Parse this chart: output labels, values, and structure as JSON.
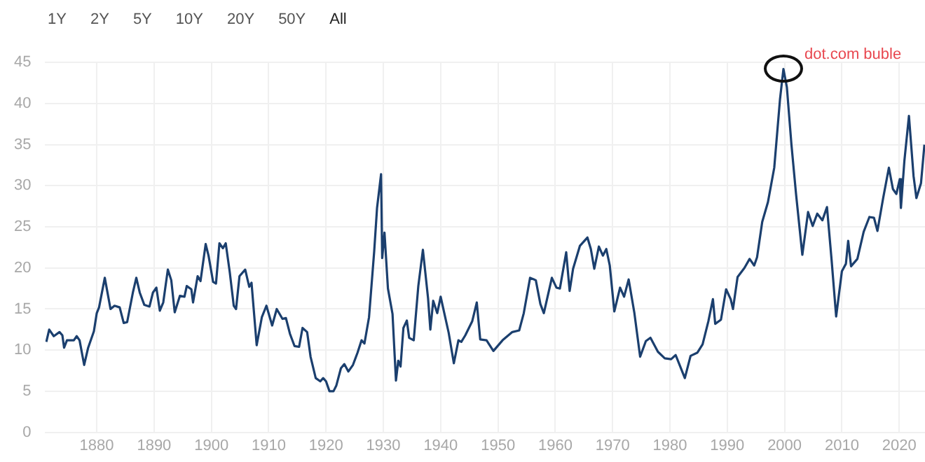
{
  "chart_data": {
    "type": "line",
    "annotations": [
      "1Y",
      "2Y",
      "5Y",
      "10Y",
      "20Y",
      "50Y",
      "All",
      {
        "text": "dot.com buble",
        "x": 1999.8,
        "y": 44.2
      }
    ],
    "series": [
      {
        "color": "#1b3f6e",
        "x": [
          1871.2,
          1871.7,
          1872.5,
          1873.5,
          1874.0,
          1874.3,
          1874.8,
          1876.0,
          1876.5,
          1877.0,
          1877.8,
          1878.5,
          1879.5,
          1880.0,
          1880.4,
          1881.4,
          1882.4,
          1883.1,
          1884.0,
          1884.7,
          1885.3,
          1886.3,
          1886.9,
          1887.5,
          1888.3,
          1889.2,
          1889.8,
          1890.4,
          1891.0,
          1891.6,
          1892.4,
          1893.0,
          1893.6,
          1894.5,
          1895.3,
          1895.7,
          1896.5,
          1896.8,
          1897.6,
          1898.1,
          1899.0,
          1899.5,
          1900.3,
          1900.8,
          1901.4,
          1902.0,
          1902.5,
          1903.2,
          1903.9,
          1904.3,
          1904.9,
          1905.9,
          1906.6,
          1907.0,
          1907.9,
          1908.8,
          1909.6,
          1910.6,
          1911.4,
          1912.4,
          1913.0,
          1913.7,
          1914.5,
          1915.3,
          1915.9,
          1916.7,
          1917.3,
          1918.2,
          1919.0,
          1919.5,
          1920.0,
          1920.6,
          1921.3,
          1921.8,
          1922.6,
          1923.2,
          1923.9,
          1924.7,
          1925.5,
          1926.2,
          1926.7,
          1927.5,
          1928.4,
          1928.9,
          1929.6,
          1929.8,
          1930.2,
          1930.8,
          1931.6,
          1932.2,
          1932.6,
          1933.0,
          1933.5,
          1934.1,
          1934.5,
          1935.3,
          1936.1,
          1936.9,
          1937.8,
          1938.2,
          1938.7,
          1939.4,
          1940.0,
          1940.6,
          1941.4,
          1942.3,
          1943.1,
          1943.6,
          1944.3,
          1945.5,
          1946.3,
          1946.9,
          1948.0,
          1949.2,
          1950.8,
          1952.5,
          1953.7,
          1954.5,
          1955.6,
          1956.6,
          1957.4,
          1958.0,
          1959.4,
          1960.2,
          1960.8,
          1961.9,
          1962.5,
          1963.1,
          1964.3,
          1965.6,
          1966.2,
          1966.8,
          1967.6,
          1968.3,
          1968.9,
          1969.5,
          1970.3,
          1971.3,
          1972.0,
          1972.8,
          1973.8,
          1974.8,
          1975.8,
          1976.6,
          1977.9,
          1979.1,
          1980.2,
          1981.0,
          1982.6,
          1983.6,
          1984.8,
          1985.7,
          1986.7,
          1987.5,
          1987.9,
          1988.9,
          1989.8,
          1990.6,
          1991.0,
          1991.8,
          1993.0,
          1993.9,
          1994.7,
          1995.2,
          1996.1,
          1997.1,
          1998.2,
          1999.2,
          1999.8,
          2000.4,
          2001.2,
          2002.0,
          2003.1,
          2004.1,
          2004.9,
          2005.7,
          2006.6,
          2007.4,
          2008.2,
          2009.0,
          2010.0,
          2010.7,
          2011.1,
          2011.6,
          2012.7,
          2013.8,
          2014.8,
          2015.6,
          2016.2,
          2017.2,
          2018.2,
          2018.9,
          2019.5,
          2020.1,
          2020.3,
          2020.9,
          2021.7,
          2022.5,
          2023.0,
          2023.8,
          2024.4
        ],
        "values": [
          11,
          12.5,
          11.7,
          12.2,
          11.8,
          10.3,
          11.2,
          11.2,
          11.7,
          11.2,
          8.2,
          10.3,
          12.3,
          14.5,
          15.2,
          18.8,
          15,
          15.4,
          15.2,
          13.3,
          13.4,
          17,
          18.8,
          17,
          15.5,
          15.3,
          17,
          17.6,
          14.8,
          15.8,
          19.8,
          18.5,
          14.6,
          16.6,
          16.5,
          17.8,
          17.4,
          15.8,
          19,
          18.4,
          22.9,
          21.5,
          18.3,
          18.1,
          23,
          22.4,
          23,
          19.5,
          15.4,
          15,
          19,
          19.8,
          17.7,
          18.2,
          10.6,
          14,
          15.4,
          13,
          15,
          13.8,
          13.9,
          12,
          10.5,
          10.4,
          12.7,
          12.2,
          9.2,
          6.6,
          6.2,
          6.6,
          6.2,
          5,
          5,
          5.7,
          7.8,
          8.3,
          7.4,
          8.2,
          9.7,
          11.2,
          10.8,
          14,
          22,
          27.3,
          31.4,
          21.2,
          24.3,
          17.5,
          14.4,
          6.3,
          8.7,
          8,
          12.7,
          13.6,
          11.5,
          11.2,
          17.8,
          22.2,
          16.3,
          12.5,
          16,
          14.5,
          16.5,
          14.6,
          12.1,
          8.4,
          11.2,
          11,
          11.8,
          13.5,
          15.8,
          11.3,
          11.2,
          9.9,
          11.2,
          12.2,
          12.4,
          14.5,
          18.8,
          18.5,
          15.6,
          14.5,
          18.8,
          17.6,
          17.5,
          21.9,
          17.2,
          19.9,
          22.7,
          23.7,
          22.3,
          19.9,
          22.6,
          21.5,
          22.3,
          20.3,
          14.7,
          17.6,
          16.5,
          18.6,
          14.5,
          9.2,
          11.1,
          11.5,
          9.8,
          9,
          8.9,
          9.4,
          6.6,
          9.3,
          9.7,
          10.7,
          13.5,
          16.2,
          13.2,
          13.7,
          17.4,
          16.2,
          15,
          18.9,
          20,
          21.1,
          20.3,
          21.3,
          25.6,
          28,
          32.2,
          40.5,
          44.2,
          42,
          35,
          29,
          21.6,
          26.8,
          25.1,
          26.6,
          25.8,
          27.4,
          21,
          14.1,
          19.6,
          20.5,
          23.3,
          20.2,
          21.1,
          24.4,
          26.2,
          26.1,
          24.5,
          28.5,
          32.2,
          29.6,
          29,
          30.8,
          27.3,
          33,
          38.5,
          31.2,
          28.5,
          30.3,
          35
        ]
      }
    ],
    "xlim": [
      1871,
      2024.5
    ],
    "xticks": [
      1880,
      1890,
      1900,
      1910,
      1920,
      1930,
      1940,
      1950,
      1960,
      1970,
      1980,
      1990,
      2000,
      2010,
      2020
    ],
    "ylim": [
      0,
      45
    ],
    "yticks": [
      0,
      5,
      10,
      15,
      20,
      25,
      30,
      35,
      40,
      45
    ],
    "grid": true,
    "legend": false,
    "marker": "none",
    "line_style": "solid"
  }
}
